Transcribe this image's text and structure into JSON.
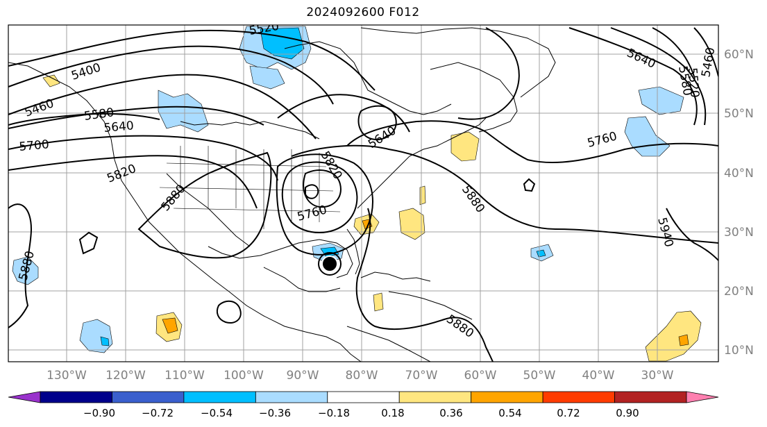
{
  "title": "2024092600 F012",
  "lon_labels": [
    "130°W",
    "120°W",
    "110°W",
    "100°W",
    "90°W",
    "80°W",
    "70°W",
    "60°W",
    "50°W",
    "40°W",
    "30°W"
  ],
  "lat_labels": [
    "60°N",
    "50°N",
    "40°N",
    "30°N",
    "20°N",
    "10°N"
  ],
  "colorbar": {
    "colors": [
      "#9932cc",
      "#00008b",
      "#3a5fcd",
      "#00bfff",
      "#aadcff",
      "#ffffff",
      "#ffe680",
      "#ffa500",
      "#ff3c00",
      "#b22222",
      "#ff80b0"
    ],
    "tick_labels": [
      "−0.90",
      "−0.72",
      "−0.54",
      "−0.36",
      "−0.18",
      "0.18",
      "0.36",
      "0.54",
      "0.72",
      "0.90"
    ]
  },
  "contour_labels": [
    "5400",
    "5460",
    "5520",
    "5580",
    "5640",
    "5700",
    "5820",
    "5880",
    "5760",
    "5820",
    "5640",
    "5760",
    "5880",
    "5640",
    "5520",
    "5580",
    "5460",
    "5940",
    "5880",
    "5880"
  ]
}
